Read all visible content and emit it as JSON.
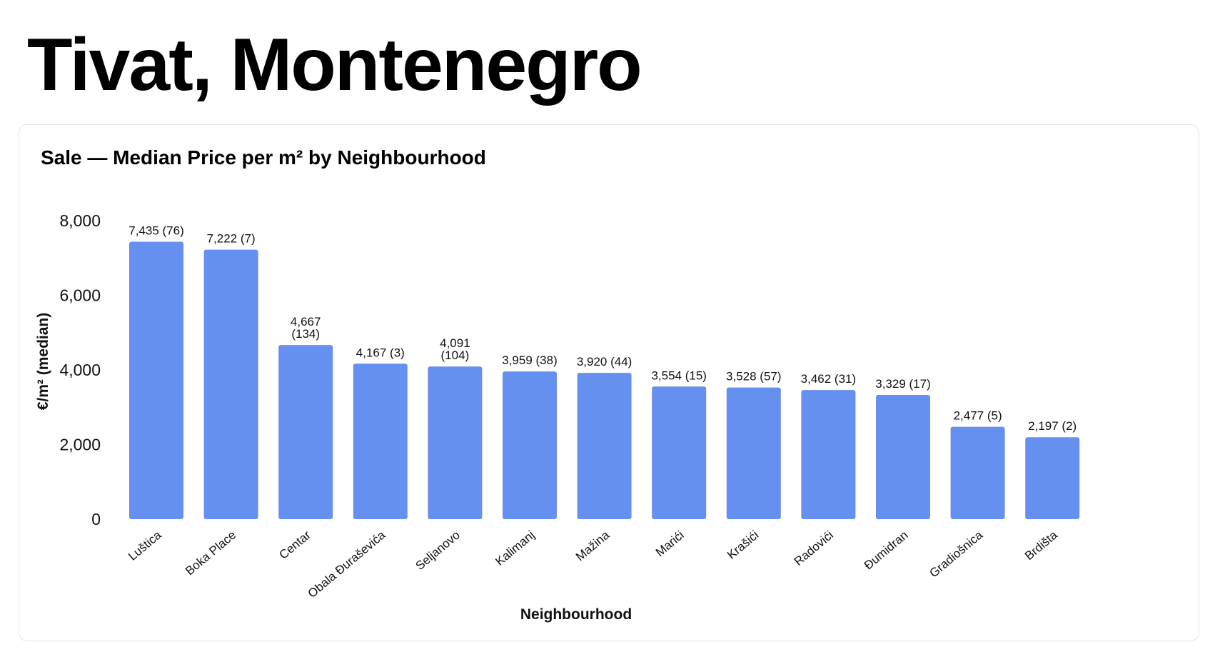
{
  "page": {
    "title": "Tivat, Montenegro"
  },
  "chart_data": {
    "type": "bar",
    "title": "Sale — Median Price per m² by Neighbourhood",
    "xlabel": "Neighbourhood",
    "ylabel": "€/m² (median)",
    "ylim": [
      0,
      8000
    ],
    "yticks": [
      "0",
      "2,000",
      "4,000",
      "6,000",
      "8,000"
    ],
    "ytick_values": [
      0,
      2000,
      4000,
      6000,
      8000
    ],
    "grid": false,
    "bar_color": "#6690ef",
    "categories": [
      "Luštica",
      "Boka Place",
      "Centar",
      "Obala Đuraševića",
      "Seljanovo",
      "Kalimanj",
      "Mažina",
      "Marići",
      "Krašići",
      "Radovići",
      "Đumidran",
      "Gradiošnica",
      "Brdišta"
    ],
    "values": [
      7435,
      7222,
      4667,
      4167,
      4091,
      3959,
      3920,
      3554,
      3528,
      3462,
      3329,
      2477,
      2197
    ],
    "counts": [
      76,
      7,
      134,
      3,
      104,
      38,
      44,
      15,
      57,
      31,
      17,
      5,
      2
    ],
    "data_labels": [
      [
        "7,435 (76)"
      ],
      [
        "7,222 (7)"
      ],
      [
        "4,667",
        "(134)"
      ],
      [
        "4,167 (3)"
      ],
      [
        "4,091",
        "(104)"
      ],
      [
        "3,959 (38)"
      ],
      [
        "3,920 (44)"
      ],
      [
        "3,554 (15)"
      ],
      [
        "3,528 (57)"
      ],
      [
        "3,462 (31)"
      ],
      [
        "3,329 (17)"
      ],
      [
        "2,477 (5)"
      ],
      [
        "2,197 (2)"
      ]
    ]
  }
}
